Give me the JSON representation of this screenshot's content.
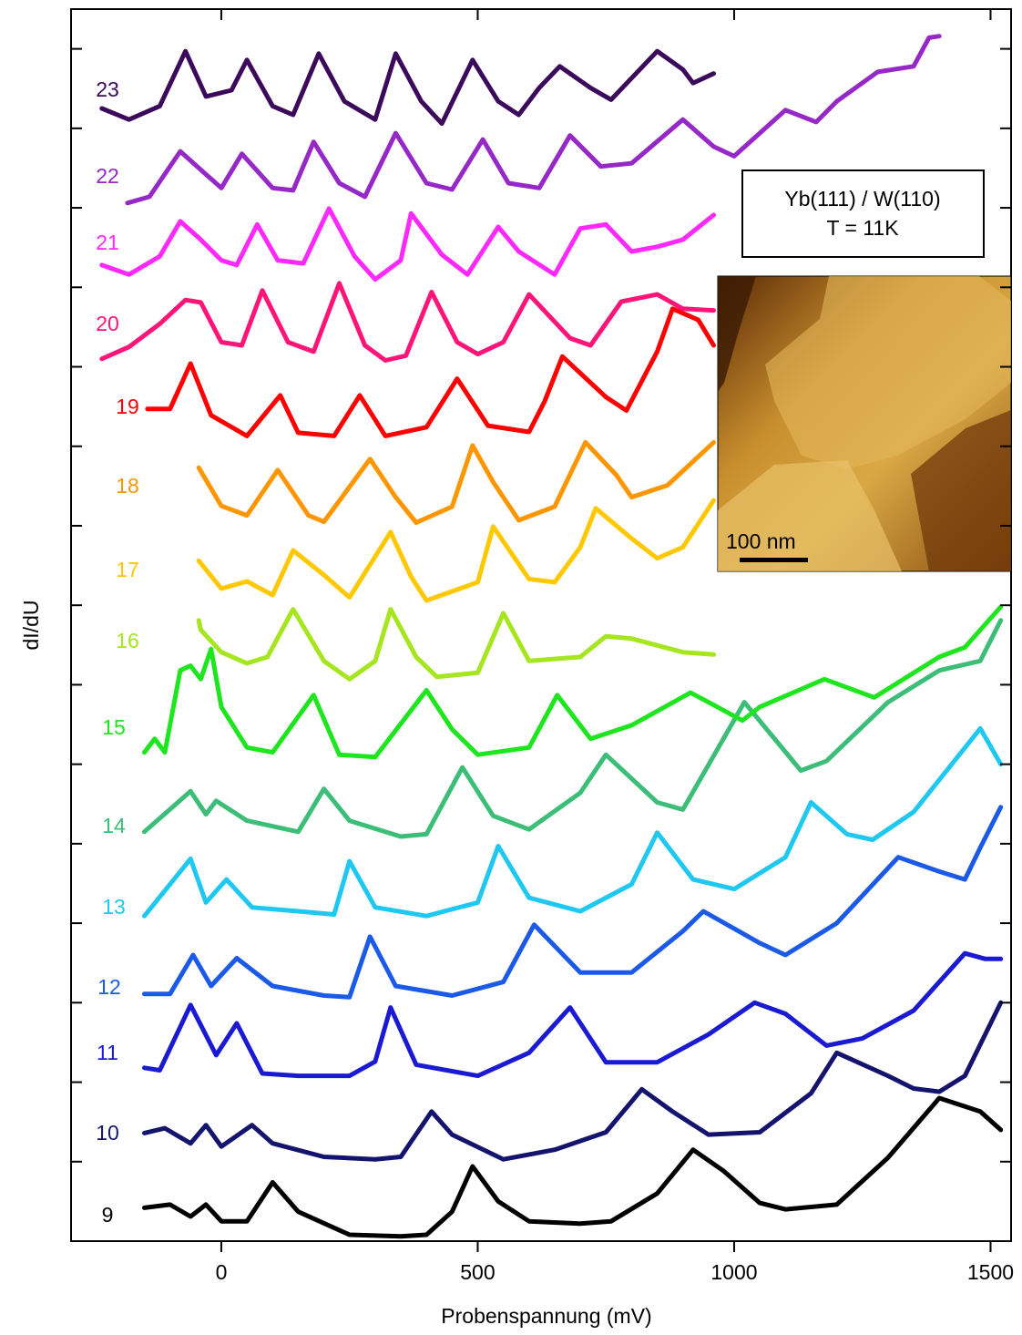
{
  "chart_data": {
    "type": "line",
    "x_label": "Probenspannung (mV)",
    "y_label": "dI/dU",
    "xlim": [
      -293,
      1540
    ],
    "xticks": [
      0,
      500,
      1000,
      1500
    ],
    "ylim": [
      0,
      15.5
    ],
    "yticks": [
      1,
      2,
      3,
      4,
      5,
      6,
      7,
      8,
      9,
      10,
      11,
      12,
      13,
      14,
      15
    ],
    "annotation": [
      "Yb(111) / W(110)",
      "T = 11K"
    ],
    "inset_scale_label": "100 nm",
    "series": [
      {
        "name": "9",
        "color": "#000000",
        "x": [
          -150,
          -100,
          -60,
          -30,
          0,
          50,
          100,
          150,
          250,
          350,
          400,
          450,
          490,
          540,
          600,
          700,
          760,
          850,
          920,
          980,
          1050,
          1100,
          1200,
          1300,
          1400,
          1480,
          1520
        ],
        "values": [
          0.42,
          0.46,
          0.31,
          0.46,
          0.25,
          0.25,
          0.74,
          0.37,
          0.08,
          0.06,
          0.08,
          0.37,
          0.94,
          0.5,
          0.25,
          0.22,
          0.25,
          0.6,
          1.15,
          0.88,
          0.48,
          0.4,
          0.46,
          1.05,
          1.8,
          1.63,
          1.4
        ]
      },
      {
        "name": "10",
        "color": "#14146e",
        "x": [
          -150,
          -110,
          -60,
          -30,
          0,
          60,
          100,
          200,
          300,
          350,
          410,
          450,
          550,
          650,
          750,
          820,
          880,
          950,
          1050,
          1150,
          1200,
          1300,
          1350,
          1400,
          1450,
          1520
        ],
        "values": [
          1.36,
          1.42,
          1.23,
          1.46,
          1.19,
          1.46,
          1.23,
          1.06,
          1.03,
          1.06,
          1.63,
          1.34,
          1.03,
          1.15,
          1.37,
          1.91,
          1.63,
          1.34,
          1.37,
          1.86,
          2.37,
          2.08,
          1.92,
          1.88,
          2.08,
          3.0
        ]
      },
      {
        "name": "11",
        "color": "#1a1ad2",
        "x": [
          -150,
          -120,
          -60,
          -10,
          30,
          80,
          150,
          250,
          300,
          330,
          380,
          500,
          600,
          680,
          750,
          850,
          950,
          1040,
          1100,
          1180,
          1250,
          1350,
          1450,
          1490,
          1520
        ],
        "values": [
          2.18,
          2.15,
          2.97,
          2.34,
          2.74,
          2.11,
          2.08,
          2.08,
          2.26,
          2.94,
          2.22,
          2.08,
          2.37,
          2.94,
          2.25,
          2.25,
          2.6,
          3.0,
          2.86,
          2.46,
          2.55,
          2.9,
          3.62,
          3.55,
          3.55
        ]
      },
      {
        "name": "12",
        "color": "#1a5ae6",
        "x": [
          -150,
          -100,
          -55,
          -20,
          30,
          100,
          200,
          250,
          290,
          340,
          450,
          550,
          610,
          700,
          800,
          900,
          940,
          1050,
          1100,
          1200,
          1320,
          1400,
          1450,
          1480,
          1520
        ],
        "values": [
          3.11,
          3.11,
          3.6,
          3.21,
          3.56,
          3.21,
          3.09,
          3.07,
          3.83,
          3.21,
          3.09,
          3.26,
          3.98,
          3.38,
          3.38,
          3.9,
          4.15,
          3.75,
          3.6,
          4.0,
          4.83,
          4.65,
          4.55,
          4.95,
          5.46
        ]
      },
      {
        "name": "13",
        "color": "#1ec8f0",
        "x": [
          -150,
          -60,
          -30,
          10,
          60,
          150,
          220,
          250,
          300,
          400,
          500,
          540,
          600,
          700,
          800,
          850,
          920,
          1000,
          1100,
          1150,
          1220,
          1270,
          1350,
          1480,
          1520
        ],
        "values": [
          4.09,
          4.81,
          4.26,
          4.55,
          4.2,
          4.15,
          4.11,
          4.78,
          4.2,
          4.09,
          4.26,
          4.97,
          4.32,
          4.15,
          4.49,
          5.14,
          4.55,
          4.43,
          4.83,
          5.52,
          5.12,
          5.05,
          5.4,
          6.45,
          6.0
        ]
      },
      {
        "name": "14",
        "color": "#3cbe78",
        "x": [
          -150,
          -60,
          -30,
          -10,
          50,
          150,
          200,
          250,
          350,
          400,
          470,
          530,
          600,
          700,
          750,
          850,
          900,
          1020,
          1130,
          1180,
          1300,
          1400,
          1480,
          1520
        ],
        "values": [
          5.15,
          5.66,
          5.37,
          5.54,
          5.29,
          5.15,
          5.69,
          5.29,
          5.09,
          5.12,
          5.96,
          5.35,
          5.18,
          5.64,
          6.12,
          5.52,
          5.43,
          6.78,
          5.92,
          6.04,
          6.78,
          7.18,
          7.3,
          7.81
        ]
      },
      {
        "name": "15",
        "color": "#1ee61e",
        "x": [
          -150,
          -130,
          -110,
          -80,
          -60,
          -40,
          -20,
          0,
          50,
          100,
          180,
          230,
          300,
          400,
          450,
          500,
          600,
          655,
          720,
          800,
          915,
          950,
          1016,
          1050,
          1176,
          1273,
          1400,
          1450,
          1520
        ],
        "values": [
          6.15,
          6.32,
          6.15,
          7.18,
          7.24,
          7.07,
          7.45,
          6.72,
          6.21,
          6.15,
          6.87,
          6.12,
          6.09,
          6.93,
          6.44,
          6.12,
          6.21,
          6.87,
          6.32,
          6.49,
          6.9,
          6.78,
          6.55,
          6.72,
          7.07,
          6.84,
          7.35,
          7.47,
          7.98
        ]
      },
      {
        "name": "16",
        "color": "#a5e61e",
        "x": [
          -44,
          -40,
          0,
          50,
          90,
          140,
          200,
          250,
          300,
          330,
          380,
          420,
          500,
          550,
          600,
          700,
          750,
          800,
          900,
          960
        ],
        "values": [
          7.81,
          7.69,
          7.41,
          7.27,
          7.35,
          7.95,
          7.3,
          7.07,
          7.3,
          7.95,
          7.35,
          7.1,
          7.15,
          7.9,
          7.3,
          7.35,
          7.61,
          7.58,
          7.41,
          7.38
        ]
      },
      {
        "name": "17",
        "color": "#ffc800",
        "x": [
          -44,
          0,
          50,
          100,
          140,
          200,
          250,
          330,
          370,
          400,
          500,
          530,
          600,
          650,
          700,
          730,
          800,
          850,
          900,
          960
        ],
        "values": [
          8.56,
          8.21,
          8.3,
          8.13,
          8.69,
          8.38,
          8.1,
          8.92,
          8.36,
          8.06,
          8.29,
          8.99,
          8.33,
          8.29,
          8.73,
          9.22,
          8.84,
          8.59,
          8.73,
          9.32
        ]
      },
      {
        "name": "18",
        "color": "#ff9600",
        "x": [
          -44,
          0,
          50,
          110,
          170,
          200,
          290,
          340,
          380,
          450,
          490,
          530,
          580,
          650,
          710,
          770,
          800,
          870,
          960
        ],
        "values": [
          9.73,
          9.25,
          9.13,
          9.7,
          9.13,
          9.05,
          9.84,
          9.36,
          9.04,
          9.24,
          10.01,
          9.55,
          9.07,
          9.24,
          10.05,
          9.64,
          9.36,
          9.51,
          10.05
        ]
      },
      {
        "name": "19",
        "color": "#ff0000",
        "x": [
          -144,
          -100,
          -60,
          -20,
          50,
          115,
          150,
          220,
          270,
          320,
          400,
          460,
          520,
          600,
          630,
          665,
          750,
          790,
          850,
          880,
          930,
          960
        ],
        "values": [
          10.47,
          10.47,
          11.04,
          10.39,
          10.13,
          10.64,
          10.17,
          10.13,
          10.64,
          10.13,
          10.24,
          10.85,
          10.26,
          10.18,
          10.56,
          11.13,
          10.62,
          10.45,
          11.19,
          11.73,
          11.59,
          11.27
        ]
      },
      {
        "name": "20",
        "color": "#ff1478",
        "x": [
          -233,
          -180,
          -120,
          -70,
          -40,
          0,
          40,
          80,
          130,
          180,
          230,
          280,
          320,
          360,
          410,
          460,
          500,
          550,
          600,
          680,
          720,
          780,
          850,
          900,
          960
        ],
        "values": [
          11.1,
          11.25,
          11.54,
          11.84,
          11.81,
          11.31,
          11.27,
          11.96,
          11.31,
          11.19,
          12.05,
          11.27,
          11.08,
          11.14,
          11.94,
          11.31,
          11.16,
          11.31,
          11.91,
          11.36,
          11.27,
          11.82,
          11.91,
          11.73,
          11.71
        ]
      },
      {
        "name": "21",
        "color": "#ff28ff",
        "x": [
          -233,
          -180,
          -120,
          -80,
          -40,
          0,
          30,
          70,
          110,
          160,
          210,
          260,
          300,
          350,
          370,
          430,
          480,
          540,
          580,
          650,
          700,
          750,
          800,
          850,
          900,
          960
        ],
        "values": [
          12.28,
          12.16,
          12.39,
          12.83,
          12.6,
          12.34,
          12.28,
          12.79,
          12.34,
          12.3,
          12.99,
          12.39,
          12.1,
          12.34,
          12.93,
          12.41,
          12.16,
          12.76,
          12.45,
          12.16,
          12.74,
          12.79,
          12.45,
          12.51,
          12.6,
          12.91
        ]
      },
      {
        "name": "22",
        "color": "#9628c8",
        "x": [
          -183,
          -140,
          -80,
          -30,
          0,
          40,
          100,
          140,
          180,
          230,
          280,
          340,
          400,
          450,
          510,
          560,
          620,
          680,
          740,
          800,
          900,
          960,
          1000,
          1100,
          1160,
          1200,
          1280,
          1350,
          1380,
          1400
        ],
        "values": [
          13.06,
          13.14,
          13.71,
          13.42,
          13.25,
          13.68,
          13.25,
          13.22,
          13.83,
          13.31,
          13.14,
          13.94,
          13.31,
          13.23,
          13.86,
          13.31,
          13.25,
          13.91,
          13.52,
          13.56,
          14.11,
          13.77,
          13.65,
          14.23,
          14.08,
          14.34,
          14.71,
          14.78,
          15.14,
          15.16
        ]
      },
      {
        "name": "23",
        "color": "#3c0a5a",
        "x": [
          -233,
          -180,
          -120,
          -70,
          -30,
          20,
          50,
          100,
          140,
          190,
          240,
          300,
          340,
          390,
          430,
          490,
          540,
          580,
          620,
          660,
          720,
          760,
          850,
          900,
          920,
          960
        ],
        "values": [
          14.25,
          14.11,
          14.28,
          14.97,
          14.4,
          14.48,
          14.86,
          14.28,
          14.17,
          14.94,
          14.34,
          14.11,
          14.94,
          14.34,
          14.06,
          14.86,
          14.34,
          14.17,
          14.51,
          14.78,
          14.51,
          14.36,
          14.97,
          14.74,
          14.57,
          14.69
        ]
      }
    ]
  }
}
